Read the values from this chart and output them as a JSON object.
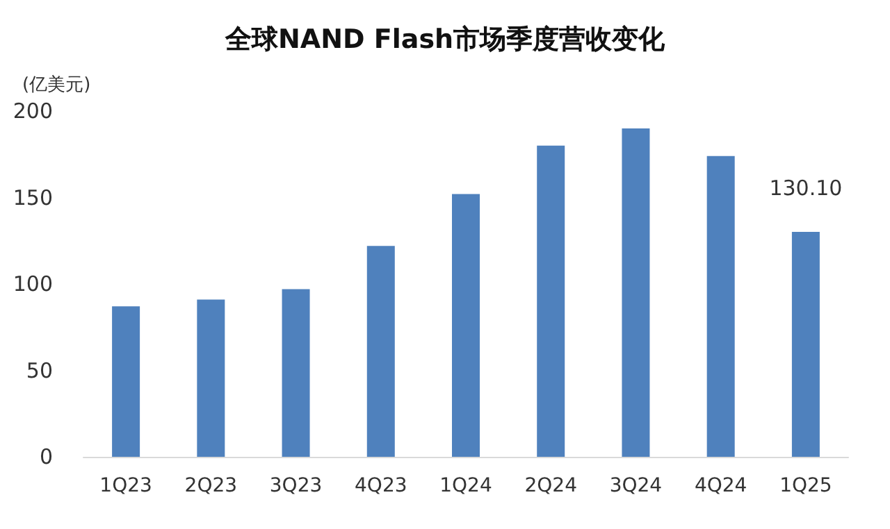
{
  "chart_data": {
    "type": "bar",
    "title": "全球NAND Flash市场季度营收变化",
    "ylabel": "(亿美元)",
    "categories": [
      "1Q23",
      "2Q23",
      "3Q23",
      "4Q23",
      "1Q24",
      "2Q24",
      "3Q24",
      "4Q24",
      "1Q25"
    ],
    "values": [
      87,
      91,
      97,
      122,
      152,
      180,
      190,
      174,
      130.1
    ],
    "value_labels": [
      null,
      null,
      null,
      null,
      null,
      null,
      null,
      null,
      "130.10"
    ],
    "color": "#4f81bd",
    "ylim": [
      0,
      200
    ],
    "yticks": [
      0,
      50,
      100,
      150,
      200
    ],
    "grid": false
  }
}
